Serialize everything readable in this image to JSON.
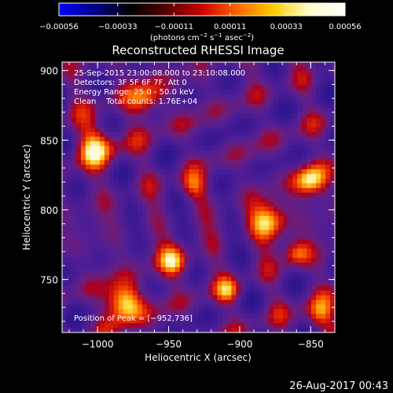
{
  "chart_data": {
    "type": "heatmap",
    "title": "Reconstructed RHESSI Image",
    "xlabel": "Heliocentric X (arcsec)",
    "ylabel": "Heliocentric Y (arcsec)",
    "xlim": [
      -1025,
      -833
    ],
    "ylim": [
      712,
      906
    ],
    "x_ticks": [
      -1000,
      -950,
      -900,
      -850
    ],
    "x_tick_labels": [
      "−1000",
      "−950",
      "−900",
      "−850"
    ],
    "y_ticks": [
      750,
      800,
      850,
      900
    ],
    "y_tick_labels": [
      "750",
      "800",
      "850",
      "900"
    ],
    "colorbar": {
      "range": [
        -0.00056,
        0.00056
      ],
      "ticks": [
        -0.00056,
        -0.00033,
        -0.00011,
        0.00011,
        0.00033,
        0.00056
      ],
      "tick_labels": [
        "−0.00056",
        "−0.00033",
        "−0.00011",
        "0.00011",
        "0.00033",
        "0.00056"
      ],
      "unit_parts": [
        "(photons cm",
        "−2",
        " s",
        "−1",
        " asec",
        "−2",
        ")"
      ],
      "colors": [
        "#0000ff",
        "#000088",
        "#000000",
        "#550000",
        "#cc0000",
        "#ff6600",
        "#ffcc00",
        "#ffffcc",
        "#ffffff"
      ]
    },
    "annotations": [
      "25-Sep-2015 23:00:08.000 to 23:10:08.000",
      "Detectors: 3F 5F 6F 7F, Att 0",
      "Energy Range: 25.0 - 50.0 keV",
      "Clean    Total counts: 1.76E+04"
    ],
    "peak_label": "Position of Peak = [−952,736]",
    "peak": [
      -952,
      736
    ],
    "grid": false,
    "legend": "none"
  },
  "footer": {
    "timestamp": "26-Aug-2017 00:43"
  }
}
